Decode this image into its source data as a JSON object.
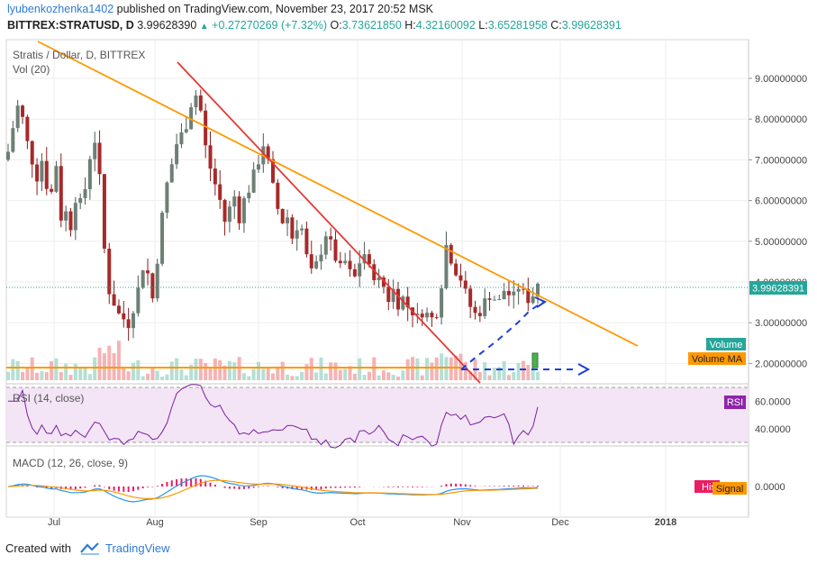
{
  "header": {
    "user": "lyubenkozhenka1402",
    "published": "published on TradingView.com, November 23, 2017 20:52 MSK",
    "symbol": "BITTREX:STRATUSD, D",
    "last": "3.99628390",
    "change": "+0.27270269 (+7.32%)",
    "o_label": "O:",
    "o": "3.73621850",
    "h_label": "H:",
    "h": "4.32160092",
    "l_label": "L:",
    "l": "3.65281958",
    "c_label": "C:",
    "c": "3.99628391"
  },
  "chart_data": [
    {
      "type": "candlestick",
      "title": "Stratis / Dollar, D, BITTREX",
      "volume_label": "Vol (20)",
      "y_ticks": [
        "9.00000000",
        "8.00000000",
        "7.00000000",
        "6.00000000",
        "5.00000000",
        "4.00000000",
        "3.00000000",
        "2.00000000"
      ],
      "ylim": [
        1.75,
        10.0
      ],
      "x_ticks": [
        "Jul",
        "Aug",
        "Sep",
        "Oct",
        "Nov",
        "Dec",
        "2018"
      ],
      "last_price_label": "3.99628391",
      "legend": [
        "Volume",
        "Volume MA"
      ],
      "trend_close": [
        7.2,
        7.8,
        8.3,
        8.0,
        7.4,
        7.0,
        6.6,
        7.0,
        6.4,
        6.2,
        6.9,
        5.6,
        5.7,
        5.4,
        6.1,
        5.9,
        6.3,
        7.1,
        7.5,
        6.5,
        4.8,
        3.8,
        3.5,
        3.2,
        3.1,
        3.0,
        3.4,
        3.8,
        4.4,
        4.2,
        3.6,
        4.6,
        5.6,
        6.4,
        6.9,
        7.4,
        7.6,
        7.9,
        8.4,
        8.6,
        8.2,
        7.3,
        6.8,
        6.4,
        6.0,
        5.5,
        5.8,
        6.1,
        5.6,
        6.0,
        6.3,
        6.6,
        7.0,
        7.4,
        6.9,
        6.3,
        5.8,
        5.5,
        5.6,
        5.1,
        5.4,
        5.3,
        4.6,
        4.2,
        4.4,
        4.8,
        5.2,
        4.9,
        4.6,
        4.3,
        4.5,
        4.2,
        4.1,
        4.5,
        4.7,
        4.3,
        4.2,
        4.0,
        3.9,
        3.6,
        3.8,
        3.5,
        3.6,
        3.4,
        3.3,
        3.1,
        3.3,
        3.2,
        3.1,
        3.3,
        4.0,
        4.9,
        4.6,
        4.3,
        4.1,
        3.7,
        3.4,
        3.2,
        3.3,
        3.5,
        3.7,
        3.6,
        3.5,
        3.8,
        3.7,
        3.6,
        3.9,
        3.7,
        3.6,
        3.7,
        4.0
      ]
    },
    {
      "type": "line",
      "title": "RSI (14, close)",
      "badge": "RSI",
      "y_ticks": [
        "60.0000",
        "40.0000"
      ],
      "ylim": [
        24,
        74
      ],
      "band": [
        30,
        70
      ]
    },
    {
      "type": "line",
      "title": "MACD (12, 26, close, 9)",
      "badges": [
        "Hist",
        "Signal"
      ],
      "y_ticks": [
        "0.0000"
      ],
      "ylim": [
        -1.8,
        1.6
      ]
    }
  ],
  "footer": {
    "created": "Created with",
    "brand": "TradingView"
  },
  "colors": {
    "up": "#26a69a",
    "down": "#ef5350",
    "candle_up": "#4b5b53",
    "candle_down": "#8b1d1d",
    "trendline_orange": "#ff9800",
    "trendline_red": "#e53935",
    "rsi": "#7b1fa2",
    "macd": "#2196f3",
    "signal": "#ff9800",
    "projection": "#1f3fd6"
  }
}
